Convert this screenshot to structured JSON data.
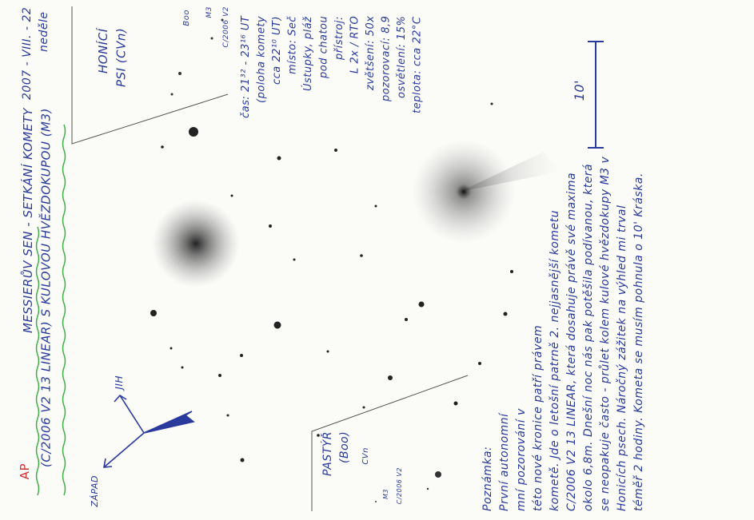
{
  "header": {
    "mark": "AP",
    "title": "MESSIERŮV SEN - SETKÁNÍ KOMETY",
    "subtitle": "(C/2006 V2 13 LINEAR) S KULOVOU HVĚZDOKUPOU (M3)",
    "date": "2007 - VIII. - 22",
    "weekday": "neděle"
  },
  "compass": {
    "south": "JIH",
    "west": "ZÁPAD"
  },
  "inset_top": {
    "constellation": "HONÍCÍ",
    "constellation_2": "PSI (CVn)",
    "boo": "Boo",
    "m3": "M3",
    "comet": "C/2006 V2"
  },
  "inset_bottom": {
    "constellation": "PASTÝŘ",
    "abbr": "(Boo)",
    "cvn": "CVn",
    "m3": "M3",
    "comet": "C/2006 V2"
  },
  "details": [
    "čas: 21³² - 23¹⁶ UT",
    "(poloha komety",
    "cca 22¹⁰ UT)",
    "místo: Seč",
    "Ústupky, pláž",
    "pod chatou",
    "přístroj:",
    "L 2x / RTO",
    "zvětšení: 50x",
    "pozorovací: 8,9",
    "osvětlení: 15%",
    "teplota: cca 22°C"
  ],
  "scale": "10'",
  "note": {
    "label": "Poznámka:",
    "lines": [
      "První autonomní",
      "mní pozorování v",
      "této nové kronice patří právem",
      "kometě. Jde o letošní patrně 2. nejjasnější kometu",
      "C/2006 V2 13 LINEAR, která dosahuje právě své maxima",
      "okolo 6,8m. Dnešní noc nás pak potěšila podívanou, která",
      "se neopakuje často - průlet kolem kulové hvězdokupy M3 v",
      "Honicích psech. Náročný zážitek na výhled mi trval",
      "téměř 2 hodiny. Kometa se musím pohnula o 10' Kráska."
    ]
  }
}
